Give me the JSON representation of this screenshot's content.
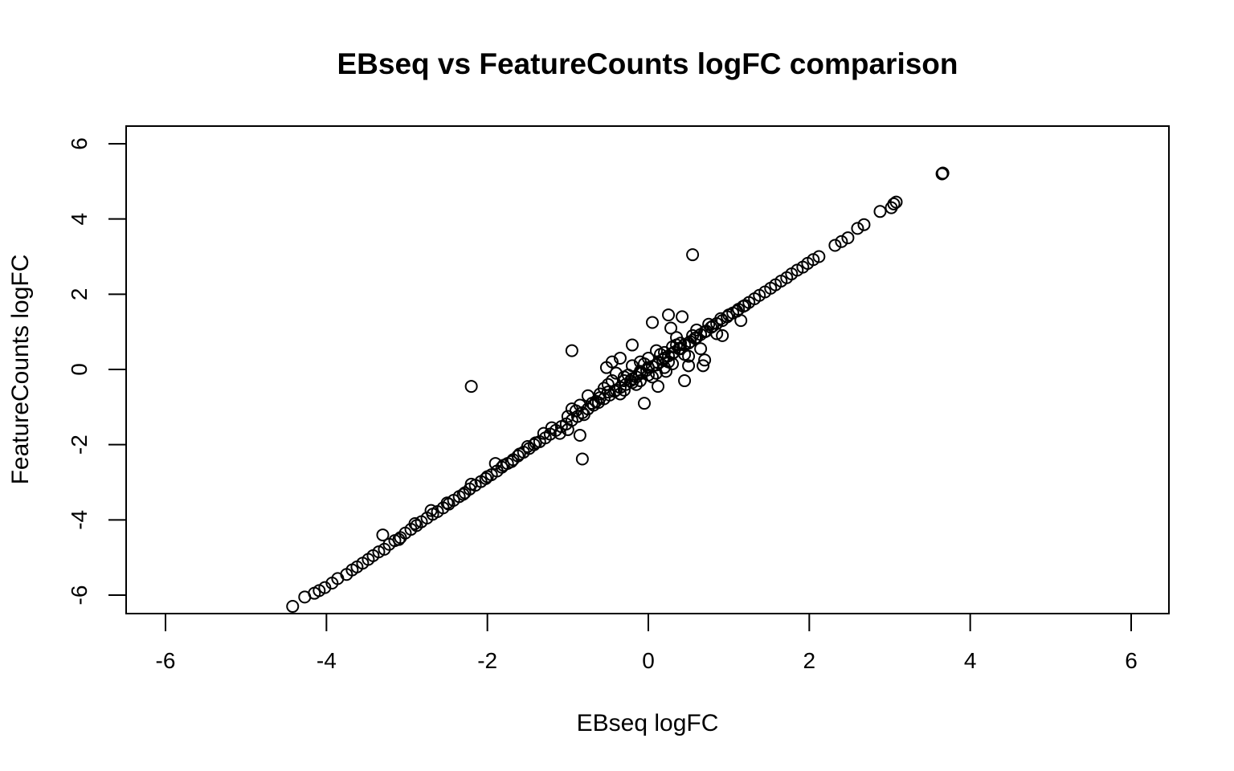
{
  "chart_data": {
    "type": "scatter",
    "title": "EBseq vs FeatureCounts logFC comparison",
    "xlabel": "EBseq logFC",
    "ylabel": "FeatureCounts logFC",
    "xlim": [
      -6.5,
      6.5
    ],
    "ylim": [
      -6.5,
      6.5
    ],
    "xticks": [
      -6,
      -4,
      -2,
      0,
      2,
      4,
      6
    ],
    "yticks": [
      -6,
      -4,
      -2,
      0,
      2,
      4,
      6
    ],
    "x_tick_labels": [
      "-6",
      "-4",
      "-2",
      "0",
      "2",
      "4",
      "6"
    ],
    "y_tick_labels": [
      "-6",
      "-4",
      "-2",
      "0",
      "2",
      "4",
      "6"
    ],
    "grid": false,
    "legend": "none",
    "marker": "open-circle",
    "color": "#000000",
    "points": [
      [
        -4.42,
        -6.3
      ],
      [
        -4.27,
        -6.05
      ],
      [
        -4.15,
        -5.95
      ],
      [
        -4.09,
        -5.88
      ],
      [
        -4.02,
        -5.8
      ],
      [
        -3.93,
        -5.68
      ],
      [
        -3.86,
        -5.56
      ],
      [
        -3.75,
        -5.45
      ],
      [
        -3.68,
        -5.33
      ],
      [
        -3.62,
        -5.25
      ],
      [
        -3.55,
        -5.15
      ],
      [
        -3.48,
        -5.05
      ],
      [
        -3.42,
        -4.95
      ],
      [
        -3.35,
        -4.85
      ],
      [
        -3.28,
        -4.78
      ],
      [
        -3.22,
        -4.65
      ],
      [
        -3.15,
        -4.55
      ],
      [
        -3.08,
        -4.47
      ],
      [
        -3.02,
        -4.35
      ],
      [
        -2.95,
        -4.25
      ],
      [
        -2.88,
        -4.15
      ],
      [
        -2.82,
        -4.05
      ],
      [
        -2.75,
        -3.95
      ],
      [
        -2.68,
        -3.85
      ],
      [
        -2.62,
        -3.78
      ],
      [
        -2.55,
        -3.68
      ],
      [
        -2.48,
        -3.58
      ],
      [
        -2.42,
        -3.48
      ],
      [
        -2.35,
        -3.38
      ],
      [
        -2.28,
        -3.28
      ],
      [
        -2.22,
        -3.18
      ],
      [
        -2.15,
        -3.08
      ],
      [
        -2.08,
        -2.98
      ],
      [
        -2.02,
        -2.9
      ],
      [
        -1.95,
        -2.8
      ],
      [
        -1.88,
        -2.7
      ],
      [
        -1.82,
        -2.6
      ],
      [
        -1.75,
        -2.5
      ],
      [
        -1.68,
        -2.4
      ],
      [
        -1.62,
        -2.3
      ],
      [
        -1.55,
        -2.2
      ],
      [
        -1.48,
        -2.1
      ],
      [
        -1.42,
        -2.0
      ],
      [
        -1.35,
        -1.92
      ],
      [
        -1.28,
        -1.82
      ],
      [
        -1.22,
        -1.72
      ],
      [
        -1.15,
        -1.62
      ],
      [
        -1.08,
        -1.52
      ],
      [
        -1.02,
        -1.45
      ],
      [
        -0.95,
        -1.35
      ],
      [
        -0.88,
        -1.25
      ],
      [
        -0.82,
        -1.15
      ],
      [
        -0.75,
        -1.05
      ],
      [
        -0.68,
        -0.95
      ],
      [
        -0.62,
        -0.88
      ],
      [
        -0.55,
        -0.78
      ],
      [
        -0.48,
        -0.68
      ],
      [
        -0.42,
        -0.58
      ],
      [
        -0.35,
        -0.48
      ],
      [
        -0.28,
        -0.4
      ],
      [
        -0.22,
        -0.3
      ],
      [
        -0.15,
        -0.2
      ],
      [
        -0.08,
        -0.1
      ],
      [
        -0.02,
        -0.02
      ],
      [
        0.05,
        0.08
      ],
      [
        0.12,
        0.18
      ],
      [
        0.18,
        0.26
      ],
      [
        0.25,
        0.36
      ],
      [
        0.32,
        0.46
      ],
      [
        0.38,
        0.55
      ],
      [
        0.45,
        0.65
      ],
      [
        0.52,
        0.74
      ],
      [
        0.58,
        0.83
      ],
      [
        0.65,
        0.93
      ],
      [
        0.72,
        1.02
      ],
      [
        0.78,
        1.12
      ],
      [
        0.85,
        1.22
      ],
      [
        0.92,
        1.3
      ],
      [
        0.98,
        1.4
      ],
      [
        1.05,
        1.5
      ],
      [
        1.12,
        1.6
      ],
      [
        1.18,
        1.68
      ],
      [
        1.25,
        1.78
      ],
      [
        1.32,
        1.88
      ],
      [
        1.38,
        1.97
      ],
      [
        1.45,
        2.06
      ],
      [
        1.52,
        2.16
      ],
      [
        1.58,
        2.25
      ],
      [
        1.65,
        2.35
      ],
      [
        1.72,
        2.44
      ],
      [
        1.78,
        2.54
      ],
      [
        1.85,
        2.64
      ],
      [
        1.92,
        2.72
      ],
      [
        1.98,
        2.82
      ],
      [
        2.05,
        2.92
      ],
      [
        2.12,
        3.0
      ],
      [
        -3.3,
        -4.4
      ],
      [
        -3.1,
        -4.52
      ],
      [
        -2.9,
        -4.1
      ],
      [
        -2.7,
        -3.75
      ],
      [
        -2.5,
        -3.55
      ],
      [
        -2.3,
        -3.32
      ],
      [
        -2.2,
        -3.05
      ],
      [
        -2.0,
        -2.85
      ],
      [
        -1.9,
        -2.5
      ],
      [
        -1.8,
        -2.55
      ],
      [
        -1.7,
        -2.45
      ],
      [
        -1.6,
        -2.25
      ],
      [
        -1.5,
        -2.05
      ],
      [
        -1.4,
        -1.95
      ],
      [
        -1.3,
        -1.7
      ],
      [
        -1.2,
        -1.55
      ],
      [
        -1.1,
        -1.7
      ],
      [
        -1.0,
        -1.6
      ],
      [
        -0.9,
        -1.1
      ],
      [
        -0.8,
        -1.2
      ],
      [
        -0.7,
        -0.9
      ],
      [
        -0.6,
        -0.75
      ],
      [
        -0.5,
        -0.6
      ],
      [
        -0.4,
        -0.55
      ],
      [
        -0.3,
        -0.3
      ],
      [
        -0.2,
        -0.25
      ],
      [
        -0.1,
        -0.05
      ],
      [
        0.0,
        0.05
      ],
      [
        0.1,
        0.12
      ],
      [
        0.2,
        0.3
      ],
      [
        0.3,
        0.42
      ],
      [
        0.4,
        0.55
      ],
      [
        0.5,
        0.7
      ],
      [
        0.6,
        0.85
      ],
      [
        0.7,
        1.0
      ],
      [
        0.8,
        1.15
      ],
      [
        0.9,
        1.35
      ],
      [
        1.0,
        1.45
      ],
      [
        1.1,
        1.55
      ],
      [
        1.2,
        1.7
      ],
      [
        -1.0,
        -1.25
      ],
      [
        -0.95,
        -1.05
      ],
      [
        -0.85,
        -0.95
      ],
      [
        -0.75,
        -0.7
      ],
      [
        -0.65,
        -0.85
      ],
      [
        -0.55,
        -0.5
      ],
      [
        -0.45,
        -0.3
      ],
      [
        -0.35,
        -0.65
      ],
      [
        -0.25,
        -0.15
      ],
      [
        -0.15,
        -0.4
      ],
      [
        -0.05,
        0.15
      ],
      [
        0.05,
        -0.2
      ],
      [
        0.15,
        0.4
      ],
      [
        0.25,
        0.2
      ],
      [
        0.35,
        0.65
      ],
      [
        0.45,
        0.4
      ],
      [
        0.55,
        0.9
      ],
      [
        0.65,
        0.55
      ],
      [
        0.75,
        1.2
      ],
      [
        0.85,
        0.95
      ],
      [
        -0.3,
        -0.2
      ],
      [
        -0.2,
        0.1
      ],
      [
        -0.1,
        -0.3
      ],
      [
        0.0,
        0.3
      ],
      [
        0.1,
        -0.1
      ],
      [
        0.2,
        0.45
      ],
      [
        0.3,
        0.15
      ],
      [
        0.4,
        0.7
      ],
      [
        0.5,
        0.35
      ],
      [
        0.6,
        1.05
      ],
      [
        -0.6,
        -0.65
      ],
      [
        -0.5,
        -0.4
      ],
      [
        -0.4,
        -0.1
      ],
      [
        -0.3,
        -0.55
      ],
      [
        -0.2,
        -0.35
      ],
      [
        -0.1,
        0.2
      ],
      [
        0.0,
        -0.15
      ],
      [
        0.1,
        0.5
      ],
      [
        0.2,
        0.05
      ],
      [
        0.3,
        0.6
      ],
      [
        -0.95,
        0.5
      ],
      [
        -2.2,
        -0.45
      ],
      [
        -0.85,
        -1.75
      ],
      [
        -0.82,
        -2.38
      ],
      [
        -0.52,
        0.05
      ],
      [
        -0.45,
        0.2
      ],
      [
        -0.35,
        0.3
      ],
      [
        -0.2,
        0.65
      ],
      [
        -0.05,
        -0.9
      ],
      [
        0.05,
        1.25
      ],
      [
        0.12,
        -0.45
      ],
      [
        0.22,
        -0.05
      ],
      [
        0.25,
        1.45
      ],
      [
        0.28,
        1.1
      ],
      [
        0.35,
        0.85
      ],
      [
        0.42,
        1.4
      ],
      [
        0.45,
        -0.3
      ],
      [
        0.5,
        0.1
      ],
      [
        0.55,
        3.05
      ],
      [
        0.68,
        0.1
      ],
      [
        0.7,
        0.25
      ],
      [
        0.92,
        0.9
      ],
      [
        1.15,
        1.3
      ],
      [
        2.32,
        3.3
      ],
      [
        2.4,
        3.4
      ],
      [
        2.48,
        3.5
      ],
      [
        2.6,
        3.75
      ],
      [
        2.68,
        3.85
      ],
      [
        2.88,
        4.2
      ],
      [
        3.02,
        4.3
      ],
      [
        3.05,
        4.4
      ],
      [
        3.08,
        4.45
      ],
      [
        3.65,
        5.2
      ],
      [
        3.66,
        5.22
      ]
    ]
  }
}
